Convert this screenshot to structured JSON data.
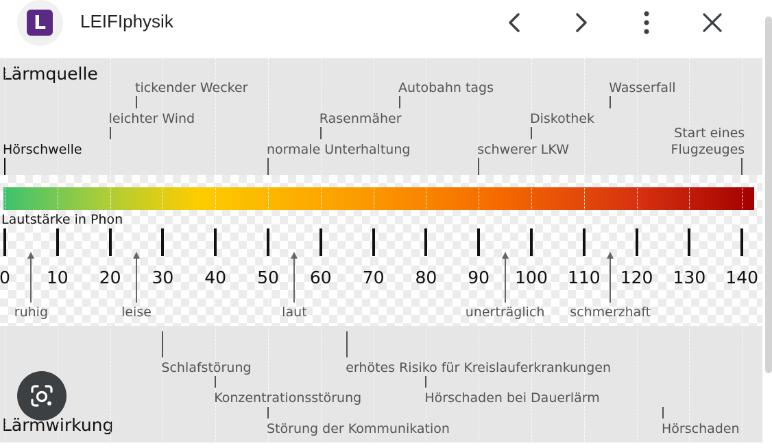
{
  "header": {
    "logo_letter": "L",
    "title": "LEIFIphysik",
    "back_icon": "chevron-left-icon",
    "forward_icon": "chevron-right-icon",
    "menu_icon": "more-vert-icon",
    "close_icon": "close-icon"
  },
  "figure": {
    "top_title": "Lärmquelle",
    "bottom_title": "Lärmwirkung",
    "scale_title": "Lautstärke in Phon",
    "sources": [
      {
        "lines": [
          "tickender Wecker"
        ],
        "phon": 25
      },
      {
        "lines": [
          "Autobahn tags"
        ],
        "phon": 75
      },
      {
        "lines": [
          "Wasserfall"
        ],
        "phon": 115
      },
      {
        "lines": [
          "leichter Wind"
        ],
        "phon": 20
      },
      {
        "lines": [
          "Rasenmäher"
        ],
        "phon": 60
      },
      {
        "lines": [
          "Diskothek"
        ],
        "phon": 100
      },
      {
        "lines": [
          "Hörschwelle"
        ],
        "phon": 0
      },
      {
        "lines": [
          "normale Unterhaltung"
        ],
        "phon": 50
      },
      {
        "lines": [
          "schwerer LKW"
        ],
        "phon": 90
      },
      {
        "lines": [
          "Start eines",
          "Flugzeuges"
        ],
        "phon": 140
      }
    ],
    "scale_ticks": [
      "0",
      "10",
      "20",
      "30",
      "40",
      "50",
      "60",
      "70",
      "80",
      "90",
      "100",
      "110",
      "120",
      "130",
      "140"
    ],
    "categories": [
      {
        "label": "ruhig",
        "phon": 5
      },
      {
        "label": "leise",
        "phon": 25
      },
      {
        "label": "laut",
        "phon": 55
      },
      {
        "label": "unerträglich",
        "phon": 95
      },
      {
        "label": "schmerzhaft",
        "phon": 115
      }
    ],
    "effects": [
      {
        "label": "Schlafstörung",
        "phon": 30
      },
      {
        "label": "erhötes Risiko für Kreislauferkrankungen",
        "phon": 65
      },
      {
        "label": "Konzentrationsstörung",
        "phon": 40
      },
      {
        "label": "Hörschaden bei Dauerlärm",
        "phon": 80
      },
      {
        "label": "Störung der Kommunikation",
        "phon": 50
      },
      {
        "label": "Hörschaden",
        "phon": 125
      }
    ]
  },
  "lens_button_icon": "google-lens-icon",
  "colors": {
    "brand": "#5b2a86",
    "band": "#e6e6e6",
    "gradient_start": "#3cc26e",
    "gradient_mid": "#fdcd00",
    "gradient_end": "#a30000"
  }
}
